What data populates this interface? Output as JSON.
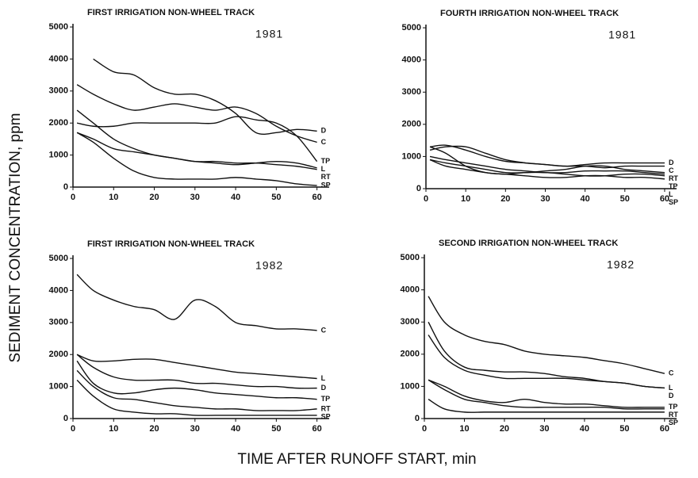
{
  "ylabel": "SEDIMENT CONCENTRATION, ppm",
  "xlabel": "TIME AFTER RUNOFF START, min",
  "chart_data": [
    {
      "type": "line",
      "title": "FIRST IRRIGATION NON-WHEEL TRACK",
      "annotation": "1981",
      "color": "#111",
      "x": [
        1,
        5,
        10,
        15,
        20,
        25,
        30,
        35,
        40,
        45,
        50,
        55,
        60
      ],
      "xlim": [
        0,
        63
      ],
      "xticks": [
        0,
        10,
        20,
        30,
        40,
        50,
        60
      ],
      "ylim": [
        0,
        5100
      ],
      "yticks": [
        0,
        1000,
        2000,
        3000,
        4000,
        5000
      ],
      "series": [
        {
          "name": "D",
          "values": [
            null,
            4000,
            3600,
            3500,
            3100,
            2900,
            2900,
            2700,
            2300,
            1700,
            1700,
            1800,
            1750
          ]
        },
        {
          "name": "C",
          "values": [
            3200,
            2900,
            2600,
            2400,
            2500,
            2600,
            2500,
            2400,
            2500,
            2300,
            1900,
            1600,
            1400
          ]
        },
        {
          "name": "TP",
          "values": [
            2000,
            1900,
            1900,
            2000,
            2000,
            2000,
            2000,
            2000,
            2200,
            2100,
            2000,
            1600,
            800
          ]
        },
        {
          "name": "L",
          "values": [
            1700,
            1500,
            1200,
            1100,
            1000,
            900,
            800,
            750,
            700,
            750,
            800,
            750,
            600
          ]
        },
        {
          "name": "RT",
          "values": [
            2400,
            2000,
            1500,
            1200,
            1000,
            900,
            800,
            800,
            750,
            750,
            700,
            650,
            550
          ]
        },
        {
          "name": "SP",
          "values": [
            1700,
            1400,
            900,
            500,
            300,
            250,
            250,
            250,
            300,
            250,
            200,
            100,
            50
          ]
        }
      ]
    },
    {
      "type": "line",
      "title": "FOURTH IRRIGATION NON-WHEEL TRACK",
      "annotation": "1981",
      "color": "#111",
      "x": [
        1,
        5,
        10,
        15,
        20,
        25,
        30,
        35,
        40,
        45,
        50,
        55,
        60
      ],
      "xlim": [
        0,
        63
      ],
      "xticks": [
        0,
        10,
        20,
        30,
        40,
        50,
        60
      ],
      "ylim": [
        0,
        5100
      ],
      "yticks": [
        0,
        1000,
        2000,
        3000,
        4000,
        5000
      ],
      "series": [
        {
          "name": "D",
          "values": [
            1300,
            1350,
            1200,
            1000,
            850,
            800,
            750,
            700,
            750,
            800,
            800,
            800,
            800
          ]
        },
        {
          "name": "C",
          "values": [
            1200,
            1300,
            1300,
            1100,
            900,
            800,
            750,
            700,
            700,
            650,
            700,
            700,
            700
          ]
        },
        {
          "name": "TP",
          "values": [
            1000,
            900,
            800,
            700,
            600,
            550,
            500,
            500,
            550,
            550,
            550,
            500,
            450
          ]
        },
        {
          "name": "RT",
          "values": [
            900,
            800,
            700,
            600,
            500,
            500,
            550,
            600,
            700,
            700,
            600,
            550,
            500
          ]
        },
        {
          "name": "SP",
          "values": [
            1300,
            1100,
            700,
            500,
            450,
            400,
            350,
            350,
            400,
            400,
            350,
            350,
            300
          ]
        },
        {
          "name": "L",
          "values": [
            900,
            700,
            600,
            500,
            450,
            500,
            500,
            450,
            400,
            400,
            450,
            450,
            400
          ]
        }
      ]
    },
    {
      "type": "line",
      "title": "FIRST IRRIGATION NON-WHEEL TRACK",
      "annotation": "1982",
      "color": "#111",
      "x": [
        1,
        5,
        10,
        15,
        20,
        25,
        30,
        35,
        40,
        45,
        50,
        55,
        60
      ],
      "xlim": [
        0,
        63
      ],
      "xticks": [
        0,
        10,
        20,
        30,
        40,
        50,
        60
      ],
      "ylim": [
        0,
        5100
      ],
      "yticks": [
        0,
        1000,
        2000,
        3000,
        4000,
        5000
      ],
      "series": [
        {
          "name": "C",
          "values": [
            4500,
            4000,
            3700,
            3500,
            3400,
            3100,
            3700,
            3500,
            3000,
            2900,
            2800,
            2800,
            2750
          ]
        },
        {
          "name": "L",
          "values": [
            2000,
            1800,
            1800,
            1850,
            1850,
            1750,
            1650,
            1550,
            1450,
            1400,
            1350,
            1300,
            1250
          ]
        },
        {
          "name": "D",
          "values": [
            2000,
            1600,
            1300,
            1200,
            1200,
            1200,
            1100,
            1100,
            1050,
            1000,
            1000,
            950,
            950
          ]
        },
        {
          "name": "TP",
          "values": [
            1800,
            1100,
            800,
            800,
            900,
            950,
            900,
            800,
            750,
            700,
            650,
            650,
            600
          ]
        },
        {
          "name": "RT",
          "values": [
            1500,
            1000,
            650,
            600,
            500,
            400,
            350,
            300,
            300,
            250,
            250,
            250,
            300
          ]
        },
        {
          "name": "SP",
          "values": [
            1200,
            700,
            300,
            200,
            150,
            150,
            100,
            100,
            100,
            100,
            100,
            100,
            100
          ]
        }
      ]
    },
    {
      "type": "line",
      "title": "SECOND IRRIGATION NON-WHEEL TRACK",
      "annotation": "1982",
      "color": "#111",
      "x": [
        1,
        5,
        10,
        15,
        20,
        25,
        30,
        35,
        40,
        45,
        50,
        55,
        60
      ],
      "xlim": [
        0,
        63
      ],
      "xticks": [
        0,
        10,
        20,
        30,
        40,
        50,
        60
      ],
      "ylim": [
        0,
        5100
      ],
      "yticks": [
        0,
        1000,
        2000,
        3000,
        4000,
        5000
      ],
      "series": [
        {
          "name": "C",
          "values": [
            3800,
            3000,
            2600,
            2400,
            2300,
            2100,
            2000,
            1950,
            1900,
            1800,
            1700,
            1550,
            1400
          ]
        },
        {
          "name": "L",
          "values": [
            3000,
            2100,
            1600,
            1500,
            1450,
            1450,
            1400,
            1300,
            1250,
            1150,
            1100,
            1000,
            950
          ]
        },
        {
          "name": "D",
          "values": [
            2600,
            1900,
            1500,
            1350,
            1250,
            1250,
            1250,
            1250,
            1200,
            1150,
            1100,
            1000,
            950
          ]
        },
        {
          "name": "TP",
          "values": [
            1200,
            1000,
            700,
            550,
            500,
            600,
            500,
            450,
            450,
            400,
            350,
            350,
            350
          ]
        },
        {
          "name": "SP",
          "values": [
            600,
            300,
            200,
            200,
            200,
            200,
            200,
            200,
            200,
            200,
            200,
            200,
            200
          ]
        },
        {
          "name": "RT",
          "values": [
            1200,
            900,
            600,
            500,
            400,
            350,
            350,
            350,
            350,
            350,
            300,
            300,
            300
          ]
        }
      ]
    }
  ]
}
